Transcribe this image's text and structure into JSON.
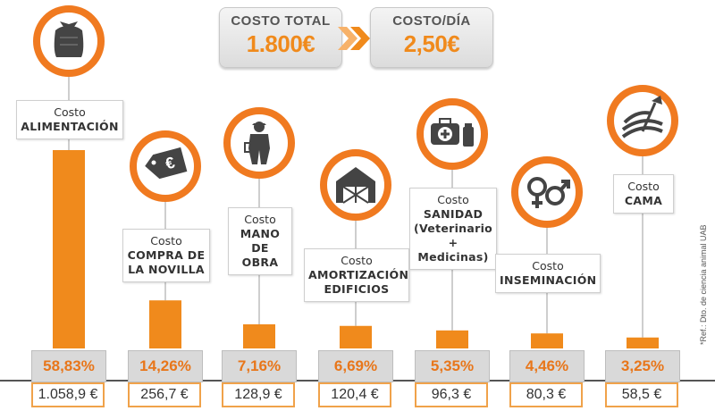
{
  "summary": {
    "total_label": "COSTO TOTAL",
    "total_value": "1.800€",
    "daily_label": "COSTO/DÍA",
    "daily_value": "2,50€"
  },
  "source_note": "*Ref.: Dto. de ciencia animal UAB",
  "chart_data": {
    "type": "bar",
    "title": "",
    "categories": [
      "Costo ALIMENTACIÓN",
      "Costo COMPRA DE LA NOVILLA",
      "Costo MANO DE OBRA",
      "Costo AMORTIZACIÓN EDIFICIOS",
      "Costo SANIDAD (Veterinario + Medicinas)",
      "Costo INSEMINACIÓN",
      "Costo CAMA"
    ],
    "values": [
      58.83,
      14.26,
      7.16,
      6.69,
      5.35,
      4.46,
      3.25
    ],
    "amounts_eur": [
      1058.9,
      256.7,
      128.9,
      120.4,
      96.3,
      80.3,
      58.5
    ],
    "value_labels": [
      "58,83%",
      "14,26%",
      "7,16%",
      "6,69%",
      "5,35%",
      "4,46%",
      "3,25%"
    ],
    "amount_labels": [
      "1.058,9 €",
      "256,7 €",
      "128,9 €",
      "120,4 €",
      "96,3 €",
      "80,3 €",
      "58,5 €"
    ],
    "ylim": [
      0,
      58.83
    ],
    "grid": false,
    "colors": {
      "bar": "#f08a1c",
      "ring": "#f07a20",
      "icon": "#444444"
    }
  },
  "items": [
    {
      "label1": "Costo",
      "label2": "ALIMENTACIÓN",
      "icon": "feed-sack-icon"
    },
    {
      "label1": "Costo",
      "label2": "COMPRA DE\nLA NOVILLA",
      "icon": "euro-price-tag-icon"
    },
    {
      "label1": "Costo",
      "label2": "MANO\nDE OBRA",
      "icon": "farm-worker-icon"
    },
    {
      "label1": "Costo",
      "label2": "AMORTIZACIÓN\nEDIFICIOS",
      "icon": "barn-icon"
    },
    {
      "label1": "Costo",
      "label2": "SANIDAD\n(Veterinario\n+\nMedicinas)",
      "icon": "medical-kit-icon"
    },
    {
      "label1": "Costo",
      "label2": "INSEMINACIÓN",
      "icon": "gender-symbols-icon"
    },
    {
      "label1": "Costo",
      "label2": "CAMA",
      "icon": "pitchfork-bedding-icon"
    }
  ]
}
